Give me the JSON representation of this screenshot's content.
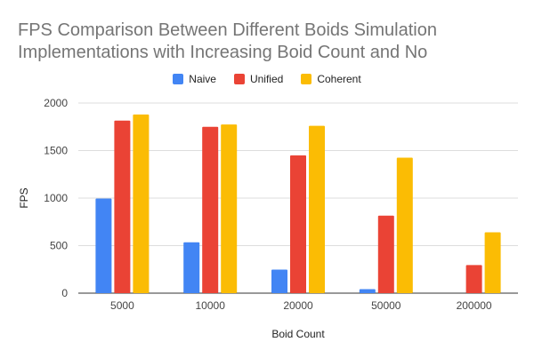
{
  "chart_data": {
    "type": "bar",
    "title": "FPS Comparison Between Different Boids Simulation Implementations with Increasing Boid Count and No",
    "xlabel": "Boid Count",
    "ylabel": "FPS",
    "categories": [
      "5000",
      "10000",
      "20000",
      "50000",
      "200000"
    ],
    "series": [
      {
        "name": "Naive",
        "color": "#4285F4",
        "values": [
          995,
          535,
          248,
          42,
          0
        ]
      },
      {
        "name": "Unified",
        "color": "#EA4335",
        "values": [
          1815,
          1750,
          1450,
          815,
          295
        ]
      },
      {
        "name": "Coherent",
        "color": "#FBBC04",
        "values": [
          1880,
          1775,
          1760,
          1425,
          640
        ]
      }
    ],
    "ylim": [
      0,
      2000
    ],
    "yticks": [
      0,
      500,
      1000,
      1500,
      2000
    ],
    "grid": true,
    "legend_position": "top"
  }
}
